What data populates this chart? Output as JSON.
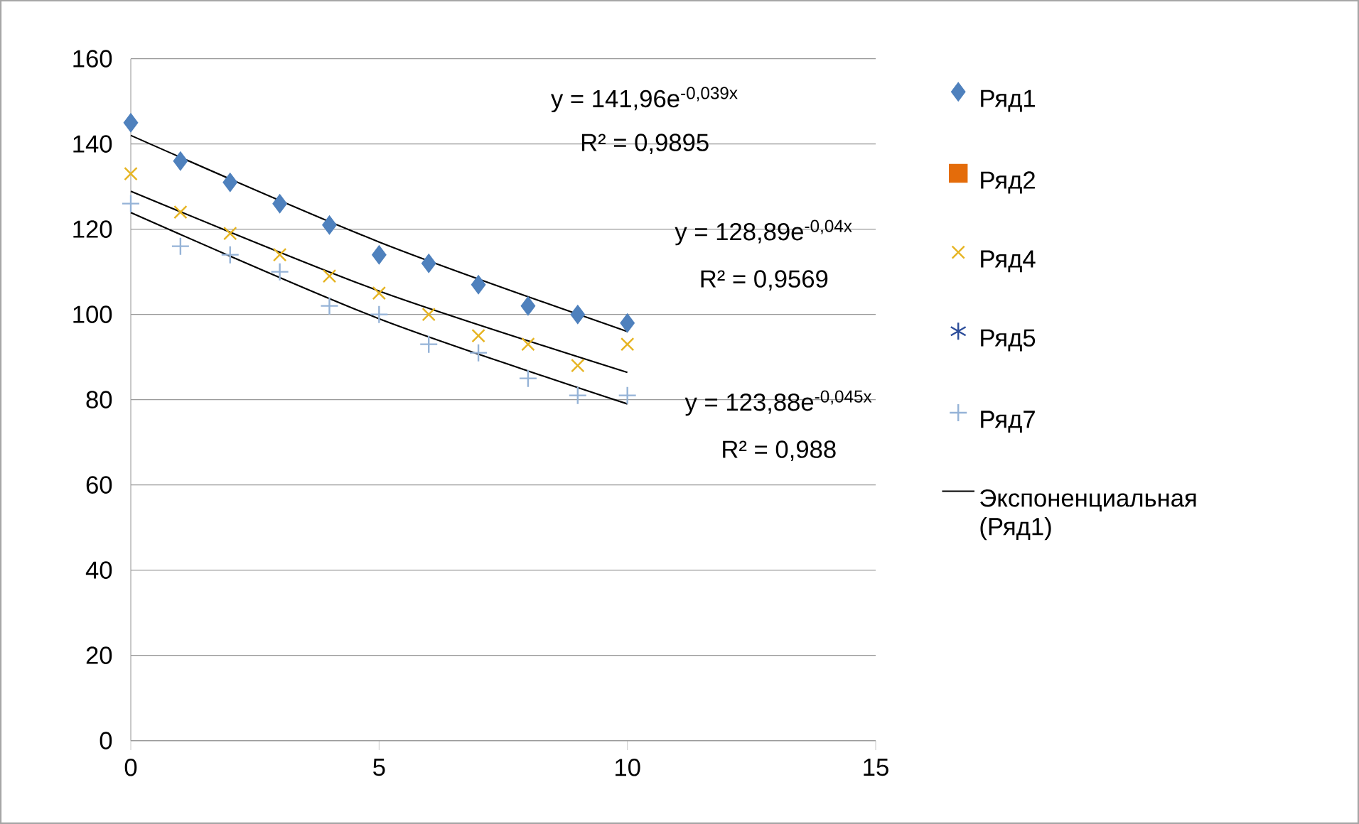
{
  "chart_data": {
    "type": "scatter",
    "xlim": [
      0,
      15
    ],
    "ylim": [
      0,
      160
    ],
    "xticks": [
      0,
      5,
      10,
      15
    ],
    "yticks": [
      0,
      20,
      40,
      60,
      80,
      100,
      120,
      140,
      160
    ],
    "grid": "y",
    "legend": "right",
    "x": [
      0,
      1,
      2,
      3,
      4,
      5,
      6,
      7,
      8,
      9,
      10
    ],
    "series": [
      {
        "name": "Ряд1",
        "color": "#4f81bd",
        "marker": "diamond",
        "values": [
          145,
          136,
          131,
          126,
          121,
          114,
          112,
          107,
          102,
          100,
          98
        ]
      },
      {
        "name": "Ряд2",
        "color": "#e46c0a",
        "marker": "square",
        "values": [
          null,
          null,
          null,
          null,
          null,
          null,
          null,
          null,
          null,
          null,
          null
        ]
      },
      {
        "name": "Ряд4",
        "color": "#e6b422",
        "marker": "cross",
        "values": [
          133,
          124,
          119,
          114,
          109,
          105,
          100,
          95,
          93,
          88,
          93
        ]
      },
      {
        "name": "Ряд5",
        "color": "#2c4d9a",
        "marker": "star",
        "values": [
          null,
          null,
          null,
          null,
          null,
          null,
          null,
          null,
          null,
          null,
          null
        ]
      },
      {
        "name": "Ряд7",
        "color": "#95b3d7",
        "marker": "plus",
        "values": [
          126,
          116,
          114,
          110,
          102,
          100,
          93,
          91,
          85,
          81,
          81
        ]
      },
      {
        "name": "Экспоненциальная (Ряд1)",
        "type": "line",
        "color": "#000000",
        "marker": "none",
        "x": [
          0,
          5,
          10
        ],
        "values": [
          142,
          117,
          96
        ]
      },
      {
        "type": "line",
        "color": "#000000",
        "marker": "none",
        "x": [
          0,
          5,
          10
        ],
        "values": [
          128.9,
          105.5,
          86.4
        ]
      },
      {
        "type": "line",
        "color": "#000000",
        "marker": "none",
        "x": [
          0,
          5,
          10
        ],
        "values": [
          123.9,
          99,
          79
        ]
      }
    ],
    "annotations": [
      "y = 141,96e$^{-0,039x}$",
      "R² = 0,9895",
      "y = 128,89e$^{-0,04x}$",
      "R² = 0,9569",
      "y = 123,88e$^{-0,045x}$",
      "R² = 0,988"
    ]
  }
}
